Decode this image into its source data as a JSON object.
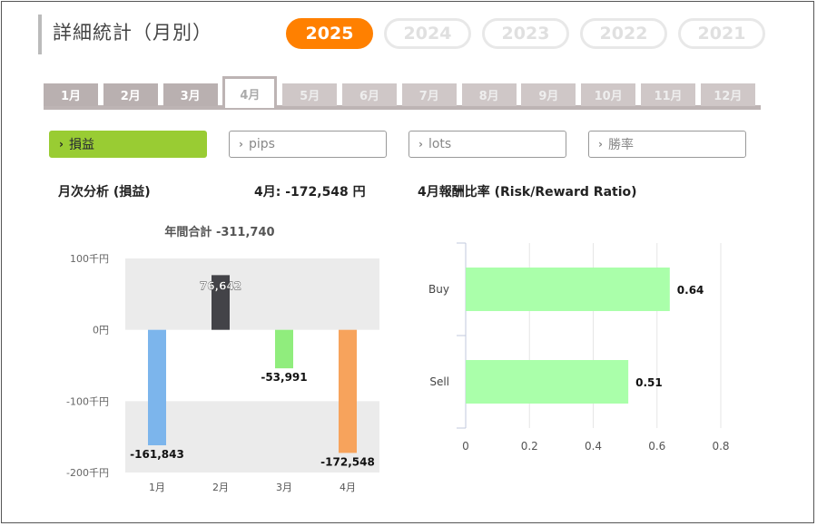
{
  "page": {
    "title": "詳細統計（月別）"
  },
  "years": [
    {
      "label": "2025",
      "active": true
    },
    {
      "label": "2024",
      "active": false
    },
    {
      "label": "2023",
      "active": false
    },
    {
      "label": "2022",
      "active": false
    },
    {
      "label": "2021",
      "active": false
    }
  ],
  "months": [
    {
      "label": "1月",
      "state": "past"
    },
    {
      "label": "2月",
      "state": "past"
    },
    {
      "label": "3月",
      "state": "past"
    },
    {
      "label": "4月",
      "state": "active"
    },
    {
      "label": "5月",
      "state": "future"
    },
    {
      "label": "6月",
      "state": "future"
    },
    {
      "label": "7月",
      "state": "future"
    },
    {
      "label": "8月",
      "state": "future"
    },
    {
      "label": "9月",
      "state": "future"
    },
    {
      "label": "10月",
      "state": "future"
    },
    {
      "label": "11月",
      "state": "future"
    },
    {
      "label": "12月",
      "state": "future"
    }
  ],
  "metrics": [
    {
      "label": "損益",
      "active": true
    },
    {
      "label": "pips",
      "active": false
    },
    {
      "label": "lots",
      "active": false
    },
    {
      "label": "勝率",
      "active": false
    }
  ],
  "sections": {
    "monthly_analysis": "月次分析 (損益)",
    "month_summary": "4月:  -172,548 円",
    "ratio_title": "4月報酬比率 (Risk/Reward Ratio)"
  },
  "colors": {
    "accent": "#ff8000",
    "active_metric": "#99cc33",
    "ratio_bar": "#aaffaa"
  },
  "chart_data": [
    {
      "type": "bar",
      "title": "年間合計 -311,740",
      "categories": [
        "1月",
        "2月",
        "3月",
        "4月"
      ],
      "values": [
        -161843,
        76642,
        -53991,
        -172548
      ],
      "value_labels": [
        "-161,843",
        "76,642",
        "-53,991",
        "-172,548"
      ],
      "bar_colors": [
        "#7cb5ec",
        "#434348",
        "#90ed7d",
        "#f7a35c"
      ],
      "ylim": [
        -200000,
        100000
      ],
      "yticks": [
        100000,
        0,
        -100000,
        -200000
      ],
      "ytick_labels": [
        "100千円",
        "0円",
        "-100千円",
        "-200千円"
      ]
    },
    {
      "type": "bar",
      "orientation": "horizontal",
      "categories": [
        "Buy",
        "Sell"
      ],
      "values": [
        0.64,
        0.51
      ],
      "value_labels": [
        "0.64",
        "0.51"
      ],
      "xlim": [
        0,
        0.8
      ],
      "xticks": [
        0,
        0.2,
        0.4,
        0.6,
        0.8
      ],
      "xtick_labels": [
        "0",
        "0.2",
        "0.4",
        "0.6",
        "0.8"
      ]
    }
  ]
}
